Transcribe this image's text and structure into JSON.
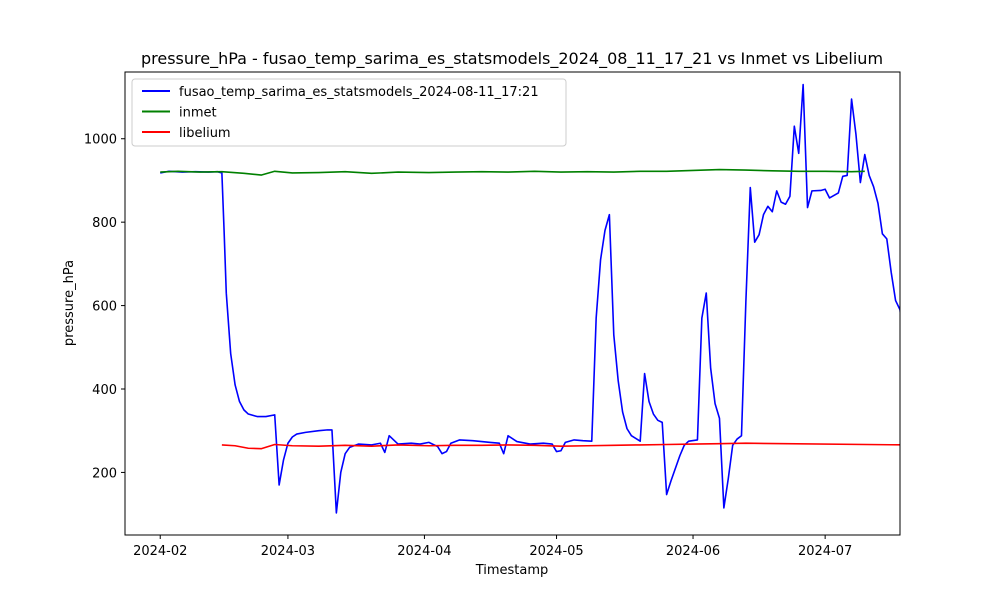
{
  "chart_data": {
    "type": "line",
    "title": "pressure_hPa - fusao_temp_sarima_es_statsmodels_2024_08_11_17_21 vs Inmet vs Libelium",
    "xlabel": "Timestamp",
    "ylabel": "pressure_hPa",
    "x_tick_labels": [
      "2024-02",
      "2024-03",
      "2024-04",
      "2024-05",
      "2024-06",
      "2024-07"
    ],
    "x_ticks": [
      "2024-02-01",
      "2024-03-01",
      "2024-04-01",
      "2024-05-01",
      "2024-06-01",
      "2024-07-01"
    ],
    "y_ticks": [
      200,
      400,
      600,
      800,
      1000
    ],
    "xlim": [
      "2024-01-24",
      "2024-07-18"
    ],
    "ylim": [
      50,
      1160
    ],
    "grid": false,
    "legend_position": "upper-left",
    "series": [
      {
        "name": "fusao_temp_sarima_es_statsmodels_2024-08-11_17:21",
        "color": "#0000ff",
        "points": [
          [
            "2024-02-01",
            918
          ],
          [
            "2024-02-03",
            922
          ],
          [
            "2024-02-06",
            920
          ],
          [
            "2024-02-09",
            921
          ],
          [
            "2024-02-12",
            920
          ],
          [
            "2024-02-14",
            921
          ],
          [
            "2024-02-15",
            918
          ],
          [
            "2024-02-15T12",
            780
          ],
          [
            "2024-02-16",
            630
          ],
          [
            "2024-02-17",
            485
          ],
          [
            "2024-02-18",
            410
          ],
          [
            "2024-02-19",
            370
          ],
          [
            "2024-02-20",
            350
          ],
          [
            "2024-02-21",
            340
          ],
          [
            "2024-02-23",
            334
          ],
          [
            "2024-02-25",
            334
          ],
          [
            "2024-02-27",
            338
          ],
          [
            "2024-02-28",
            170
          ],
          [
            "2024-02-29",
            230
          ],
          [
            "2024-03-01",
            270
          ],
          [
            "2024-03-02",
            285
          ],
          [
            "2024-03-03",
            292
          ],
          [
            "2024-03-05",
            296
          ],
          [
            "2024-03-08",
            300
          ],
          [
            "2024-03-10",
            302
          ],
          [
            "2024-03-11",
            302
          ],
          [
            "2024-03-12",
            103
          ],
          [
            "2024-03-13",
            200
          ],
          [
            "2024-03-14",
            245
          ],
          [
            "2024-03-15",
            260
          ],
          [
            "2024-03-17",
            268
          ],
          [
            "2024-03-20",
            266
          ],
          [
            "2024-03-22",
            270
          ],
          [
            "2024-03-23",
            248
          ],
          [
            "2024-03-24",
            288
          ],
          [
            "2024-03-26",
            268
          ],
          [
            "2024-03-29",
            270
          ],
          [
            "2024-03-31",
            268
          ],
          [
            "2024-04-02",
            272
          ],
          [
            "2024-04-04",
            262
          ],
          [
            "2024-04-05",
            245
          ],
          [
            "2024-04-06",
            250
          ],
          [
            "2024-04-07",
            270
          ],
          [
            "2024-04-09",
            278
          ],
          [
            "2024-04-12",
            276
          ],
          [
            "2024-04-16",
            272
          ],
          [
            "2024-04-18",
            270
          ],
          [
            "2024-04-19",
            245
          ],
          [
            "2024-04-20",
            288
          ],
          [
            "2024-04-22",
            274
          ],
          [
            "2024-04-25",
            268
          ],
          [
            "2024-04-28",
            270
          ],
          [
            "2024-04-30",
            268
          ],
          [
            "2024-05-01",
            250
          ],
          [
            "2024-05-02",
            252
          ],
          [
            "2024-05-03",
            272
          ],
          [
            "2024-05-05",
            278
          ],
          [
            "2024-05-07",
            276
          ],
          [
            "2024-05-09",
            275
          ],
          [
            "2024-05-10",
            570
          ],
          [
            "2024-05-11",
            710
          ],
          [
            "2024-05-12",
            780
          ],
          [
            "2024-05-13",
            818
          ],
          [
            "2024-05-14",
            530
          ],
          [
            "2024-05-15",
            420
          ],
          [
            "2024-05-16",
            345
          ],
          [
            "2024-05-17",
            305
          ],
          [
            "2024-05-18",
            288
          ],
          [
            "2024-05-20",
            275
          ],
          [
            "2024-05-21",
            437
          ],
          [
            "2024-05-22",
            370
          ],
          [
            "2024-05-23",
            340
          ],
          [
            "2024-05-24",
            325
          ],
          [
            "2024-05-25",
            320
          ],
          [
            "2024-05-26",
            147
          ],
          [
            "2024-05-27",
            180
          ],
          [
            "2024-05-29",
            240
          ],
          [
            "2024-05-30",
            265
          ],
          [
            "2024-05-31",
            275
          ],
          [
            "2024-06-02",
            278
          ],
          [
            "2024-06-03",
            570
          ],
          [
            "2024-06-04",
            630
          ],
          [
            "2024-06-05",
            450
          ],
          [
            "2024-06-06",
            365
          ],
          [
            "2024-06-07",
            330
          ],
          [
            "2024-06-08",
            115
          ],
          [
            "2024-06-09",
            185
          ],
          [
            "2024-06-10",
            265
          ],
          [
            "2024-06-11",
            280
          ],
          [
            "2024-06-12",
            288
          ],
          [
            "2024-06-13",
            610
          ],
          [
            "2024-06-14",
            883
          ],
          [
            "2024-06-15",
            752
          ],
          [
            "2024-06-16",
            770
          ],
          [
            "2024-06-17",
            818
          ],
          [
            "2024-06-18",
            838
          ],
          [
            "2024-06-19",
            825
          ],
          [
            "2024-06-20",
            875
          ],
          [
            "2024-06-21",
            848
          ],
          [
            "2024-06-22",
            843
          ],
          [
            "2024-06-23",
            862
          ],
          [
            "2024-06-24",
            1030
          ],
          [
            "2024-06-25",
            965
          ],
          [
            "2024-06-26",
            1130
          ],
          [
            "2024-06-27",
            835
          ],
          [
            "2024-06-28",
            875
          ],
          [
            "2024-06-30",
            876
          ],
          [
            "2024-07-01",
            879
          ],
          [
            "2024-07-02",
            858
          ],
          [
            "2024-07-04",
            870
          ],
          [
            "2024-07-05",
            910
          ],
          [
            "2024-07-06",
            912
          ],
          [
            "2024-07-07",
            1095
          ],
          [
            "2024-07-08",
            1010
          ],
          [
            "2024-07-09",
            895
          ],
          [
            "2024-07-10",
            962
          ],
          [
            "2024-07-11",
            912
          ],
          [
            "2024-07-12",
            885
          ],
          [
            "2024-07-13",
            845
          ],
          [
            "2024-07-14",
            772
          ],
          [
            "2024-07-15",
            760
          ],
          [
            "2024-07-16",
            680
          ],
          [
            "2024-07-17",
            612
          ],
          [
            "2024-07-18",
            590
          ],
          [
            "2024-07-19",
            492
          ]
        ]
      },
      {
        "name": "inmet",
        "color": "#008000",
        "points": [
          [
            "2024-02-01",
            920
          ],
          [
            "2024-02-05",
            922
          ],
          [
            "2024-02-10",
            920
          ],
          [
            "2024-02-15",
            921
          ],
          [
            "2024-02-20",
            917
          ],
          [
            "2024-02-24",
            913
          ],
          [
            "2024-02-27",
            922
          ],
          [
            "2024-03-02",
            918
          ],
          [
            "2024-03-08",
            919
          ],
          [
            "2024-03-14",
            921
          ],
          [
            "2024-03-20",
            917
          ],
          [
            "2024-03-26",
            920
          ],
          [
            "2024-04-02",
            919
          ],
          [
            "2024-04-08",
            920
          ],
          [
            "2024-04-14",
            921
          ],
          [
            "2024-04-20",
            920
          ],
          [
            "2024-04-26",
            922
          ],
          [
            "2024-05-02",
            920
          ],
          [
            "2024-05-08",
            921
          ],
          [
            "2024-05-14",
            920
          ],
          [
            "2024-05-20",
            922
          ],
          [
            "2024-05-26",
            922
          ],
          [
            "2024-06-01",
            924
          ],
          [
            "2024-06-07",
            926
          ],
          [
            "2024-06-13",
            925
          ],
          [
            "2024-06-19",
            923
          ],
          [
            "2024-06-25",
            922
          ],
          [
            "2024-07-01",
            922
          ],
          [
            "2024-07-07",
            921
          ],
          [
            "2024-07-10",
            922
          ]
        ]
      },
      {
        "name": "libelium",
        "color": "#ff0000",
        "points": [
          [
            "2024-02-15",
            266
          ],
          [
            "2024-02-18",
            264
          ],
          [
            "2024-02-21",
            258
          ],
          [
            "2024-02-24",
            257
          ],
          [
            "2024-02-27",
            267
          ],
          [
            "2024-03-02",
            264
          ],
          [
            "2024-03-08",
            263
          ],
          [
            "2024-03-14",
            265
          ],
          [
            "2024-03-20",
            263
          ],
          [
            "2024-03-26",
            266
          ],
          [
            "2024-04-02",
            264
          ],
          [
            "2024-04-08",
            265
          ],
          [
            "2024-04-14",
            265
          ],
          [
            "2024-04-20",
            266
          ],
          [
            "2024-04-26",
            265
          ],
          [
            "2024-05-02",
            263
          ],
          [
            "2024-05-08",
            264
          ],
          [
            "2024-05-14",
            265
          ],
          [
            "2024-05-20",
            266
          ],
          [
            "2024-05-26",
            267
          ],
          [
            "2024-06-01",
            268
          ],
          [
            "2024-06-07",
            269
          ],
          [
            "2024-06-13",
            270
          ],
          [
            "2024-07-19",
            266
          ]
        ]
      }
    ]
  }
}
